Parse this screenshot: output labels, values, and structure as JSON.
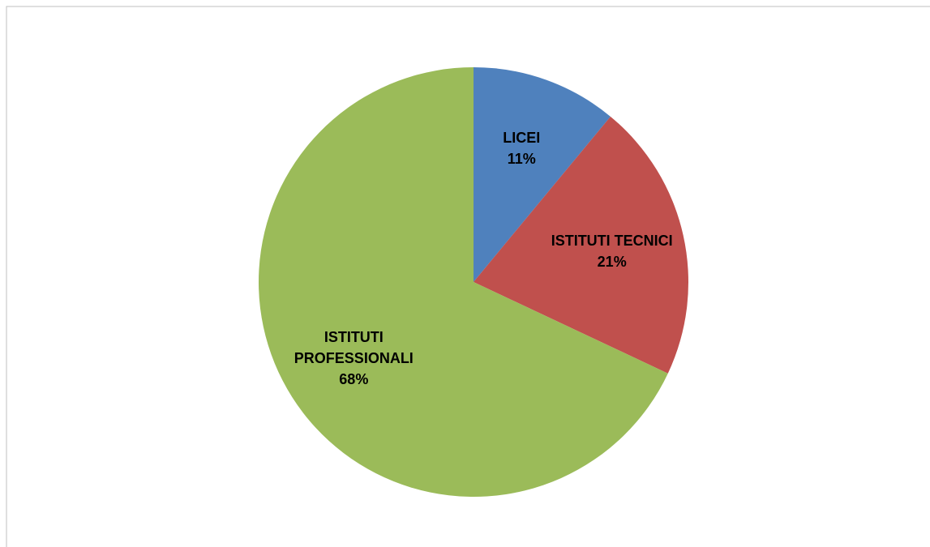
{
  "chart_data": {
    "type": "pie",
    "categories": [
      "LICEI",
      "ISTITUTI TECNICI",
      "ISTITUTI PROFESSIONALI"
    ],
    "values": [
      11,
      21,
      68
    ],
    "value_labels": [
      "11%",
      "21%",
      "68%"
    ],
    "colors": [
      "#4f81bd",
      "#c0504d",
      "#9bbb59"
    ]
  }
}
